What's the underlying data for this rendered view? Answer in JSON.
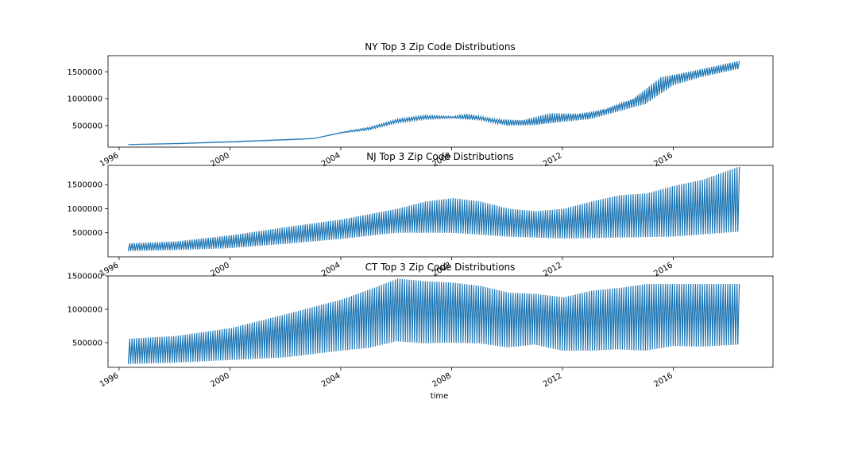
{
  "line_color": "#1f77b4",
  "chart_data": [
    {
      "type": "line",
      "title": "NY Top 3 Zip Code Distributions",
      "xlabel": "",
      "ylabel": "",
      "xlim": [
        1995.6,
        2019.6
      ],
      "ylim": [
        100000,
        1800000
      ],
      "x_ticks": [
        1996,
        2000,
        2004,
        2008,
        2012,
        2016
      ],
      "x_tick_labels": [
        "1996",
        "2000",
        "2004",
        "2008",
        "2012",
        "2016"
      ],
      "y_ticks": [
        500000,
        1000000,
        1500000
      ],
      "y_tick_labels": [
        "500000",
        "1000000",
        "1500000"
      ],
      "grid": false,
      "legend": "none",
      "x_start": 1996.33,
      "x_end": 2018.33,
      "series": [
        {
          "color": "#1f77b4",
          "upper_envelope": [
            [
              1996.3,
              150000
            ],
            [
              1998,
              170000
            ],
            [
              2000,
              205000
            ],
            [
              2002,
              245000
            ],
            [
              2003,
              265000
            ],
            [
              2004,
              380000
            ],
            [
              2005,
              470000
            ],
            [
              2006,
              620000
            ],
            [
              2007,
              690000
            ],
            [
              2008,
              670000
            ],
            [
              2008.5,
              720000
            ],
            [
              2009.5,
              620000
            ],
            [
              2010.5,
              600000
            ],
            [
              2011.5,
              730000
            ],
            [
              2012.5,
              720000
            ],
            [
              2013.5,
              800000
            ],
            [
              2014.5,
              1000000
            ],
            [
              2015.5,
              1400000
            ],
            [
              2016.5,
              1500000
            ],
            [
              2018.3,
              1700000
            ]
          ],
          "lower_envelope": [
            [
              1996.3,
              145000
            ],
            [
              1998,
              160000
            ],
            [
              2000,
              190000
            ],
            [
              2002,
              230000
            ],
            [
              2003,
              255000
            ],
            [
              2004,
              360000
            ],
            [
              2005,
              420000
            ],
            [
              2006,
              550000
            ],
            [
              2007,
              620000
            ],
            [
              2008,
              640000
            ],
            [
              2009,
              610000
            ],
            [
              2010,
              500000
            ],
            [
              2011,
              510000
            ],
            [
              2012,
              570000
            ],
            [
              2013,
              620000
            ],
            [
              2014,
              760000
            ],
            [
              2015,
              900000
            ],
            [
              2016,
              1250000
            ],
            [
              2017,
              1400000
            ],
            [
              2018.3,
              1550000
            ]
          ],
          "mean_line": [
            [
              1996.3,
              148000
            ],
            [
              1998,
              165000
            ],
            [
              2000,
              198000
            ],
            [
              2002,
              238000
            ],
            [
              2003,
              260000
            ],
            [
              2004,
              370000
            ],
            [
              2005,
              445000
            ],
            [
              2006,
              585000
            ],
            [
              2007,
              655000
            ],
            [
              2008,
              655000
            ],
            [
              2009,
              635000
            ],
            [
              2010,
              550000
            ],
            [
              2011,
              560000
            ],
            [
              2012,
              645000
            ],
            [
              2013,
              700000
            ],
            [
              2014,
              870000
            ],
            [
              2015,
              1050000
            ],
            [
              2016,
              1380000
            ],
            [
              2017,
              1480000
            ],
            [
              2018.3,
              1620000
            ]
          ]
        }
      ]
    },
    {
      "type": "line",
      "title": "NJ Top 3 Zip Code Distributions",
      "xlabel": "",
      "ylabel": "",
      "xlim": [
        1995.6,
        2019.6
      ],
      "ylim": [
        0,
        1900000
      ],
      "x_ticks": [
        1996,
        2000,
        2004,
        2008,
        2012,
        2016
      ],
      "x_tick_labels": [
        "1996",
        "2000",
        "2004",
        "2008",
        "2012",
        "2016"
      ],
      "y_ticks": [
        500000,
        1000000,
        1500000
      ],
      "y_tick_labels": [
        "500000",
        "1000000",
        "1500000"
      ],
      "grid": false,
      "legend": "none",
      "x_start": 1996.33,
      "x_end": 2018.33,
      "series": [
        {
          "color": "#1f77b4",
          "upper_envelope": [
            [
              1996.3,
              280000
            ],
            [
              1998,
              320000
            ],
            [
              2000,
              450000
            ],
            [
              2002,
              620000
            ],
            [
              2004,
              780000
            ],
            [
              2006,
              1000000
            ],
            [
              2007,
              1150000
            ],
            [
              2008,
              1220000
            ],
            [
              2009,
              1150000
            ],
            [
              2010,
              1000000
            ],
            [
              2011,
              950000
            ],
            [
              2012,
              1000000
            ],
            [
              2013,
              1150000
            ],
            [
              2014,
              1280000
            ],
            [
              2015,
              1320000
            ],
            [
              2016,
              1480000
            ],
            [
              2017,
              1600000
            ],
            [
              2018.3,
              1870000
            ]
          ],
          "lower_envelope": [
            [
              1996.3,
              120000
            ],
            [
              1998,
              140000
            ],
            [
              2000,
              180000
            ],
            [
              2002,
              270000
            ],
            [
              2004,
              370000
            ],
            [
              2006,
              500000
            ],
            [
              2008,
              500000
            ],
            [
              2010,
              420000
            ],
            [
              2012,
              380000
            ],
            [
              2014,
              400000
            ],
            [
              2016,
              420000
            ],
            [
              2018.3,
              520000
            ]
          ],
          "mean_line": [
            [
              1996.3,
              200000
            ],
            [
              1998,
              230000
            ],
            [
              2000,
              310000
            ],
            [
              2002,
              440000
            ],
            [
              2004,
              560000
            ],
            [
              2006,
              750000
            ],
            [
              2007,
              820000
            ],
            [
              2008,
              850000
            ],
            [
              2009,
              800000
            ],
            [
              2010,
              720000
            ],
            [
              2011,
              680000
            ],
            [
              2012,
              700000
            ],
            [
              2013,
              760000
            ],
            [
              2014,
              830000
            ],
            [
              2015,
              860000
            ],
            [
              2016,
              940000
            ],
            [
              2017,
              1000000
            ],
            [
              2018.3,
              1100000
            ]
          ]
        }
      ]
    },
    {
      "type": "line",
      "title": "CT Top 3 Zip Code Distributions",
      "xlabel": "time",
      "ylabel": "",
      "xlim": [
        1995.6,
        2019.6
      ],
      "ylim": [
        130000,
        1500000
      ],
      "x_ticks": [
        1996,
        2000,
        2004,
        2008,
        2012,
        2016
      ],
      "x_tick_labels": [
        "1996",
        "2000",
        "2004",
        "2008",
        "2012",
        "2016"
      ],
      "y_ticks": [
        500000,
        1000000,
        1500000
      ],
      "y_tick_labels": [
        "500000",
        "1000000",
        "1500000"
      ],
      "grid": false,
      "legend": "none",
      "x_start": 1996.33,
      "x_end": 2018.33,
      "series": [
        {
          "color": "#1f77b4",
          "upper_envelope": [
            [
              1996.3,
              560000
            ],
            [
              1998,
              600000
            ],
            [
              2000,
              720000
            ],
            [
              2002,
              930000
            ],
            [
              2004,
              1150000
            ],
            [
              2005,
              1300000
            ],
            [
              2006,
              1460000
            ],
            [
              2007,
              1420000
            ],
            [
              2008,
              1400000
            ],
            [
              2009,
              1350000
            ],
            [
              2010,
              1250000
            ],
            [
              2011,
              1230000
            ],
            [
              2012,
              1180000
            ],
            [
              2013,
              1280000
            ],
            [
              2014,
              1320000
            ],
            [
              2015,
              1380000
            ],
            [
              2016,
              1380000
            ],
            [
              2017,
              1380000
            ],
            [
              2018.3,
              1380000
            ]
          ],
          "lower_envelope": [
            [
              1996.3,
              180000
            ],
            [
              1998,
              200000
            ],
            [
              2000,
              240000
            ],
            [
              2002,
              280000
            ],
            [
              2004,
              380000
            ],
            [
              2005,
              420000
            ],
            [
              2006,
              520000
            ],
            [
              2007,
              490000
            ],
            [
              2008,
              500000
            ],
            [
              2009,
              490000
            ],
            [
              2010,
              430000
            ],
            [
              2011,
              470000
            ],
            [
              2012,
              380000
            ],
            [
              2013,
              380000
            ],
            [
              2014,
              400000
            ],
            [
              2015,
              380000
            ],
            [
              2016,
              450000
            ],
            [
              2017,
              440000
            ],
            [
              2018.3,
              470000
            ]
          ],
          "mean_line": [
            [
              1996.3,
              380000
            ],
            [
              1998,
              420000
            ],
            [
              2000,
              520000
            ],
            [
              2002,
              700000
            ],
            [
              2004,
              900000
            ],
            [
              2005,
              1000000
            ],
            [
              2006,
              1100000
            ],
            [
              2007,
              1080000
            ],
            [
              2008,
              1060000
            ],
            [
              2009,
              1000000
            ],
            [
              2010,
              930000
            ],
            [
              2011,
              960000
            ],
            [
              2012,
              880000
            ],
            [
              2013,
              900000
            ],
            [
              2014,
              940000
            ],
            [
              2015,
              960000
            ],
            [
              2016,
              1000000
            ],
            [
              2017,
              970000
            ],
            [
              2018.3,
              950000
            ]
          ]
        }
      ]
    }
  ]
}
